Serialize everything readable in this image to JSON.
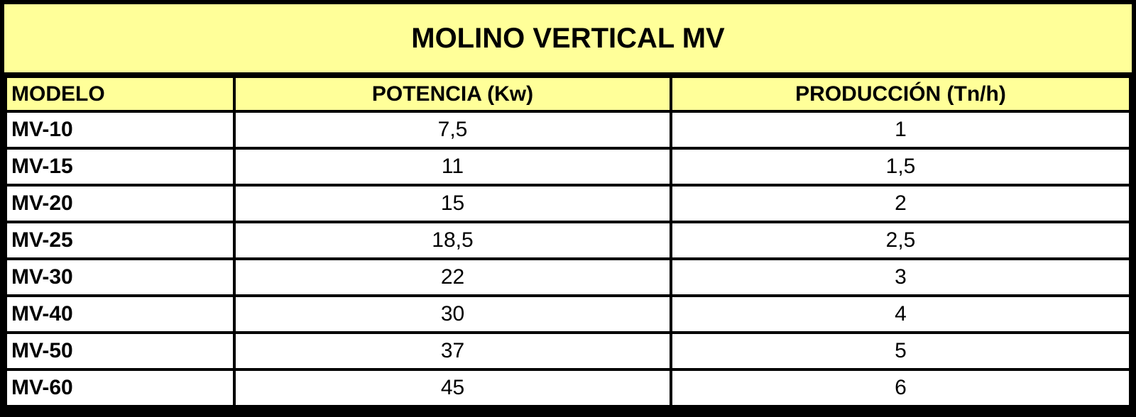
{
  "title": "MOLINO VERTICAL MV",
  "colors": {
    "header_bg": "#ffff99",
    "border": "#000000",
    "cell_bg": "#ffffff"
  },
  "table": {
    "headers": [
      "MODELO",
      "POTENCIA (Kw)",
      "PRODUCCIÓN (Tn/h)"
    ],
    "rows": [
      [
        "MV-10",
        "7,5",
        "1"
      ],
      [
        "MV-15",
        "11",
        "1,5"
      ],
      [
        "MV-20",
        "15",
        "2"
      ],
      [
        "MV-25",
        "18,5",
        "2,5"
      ],
      [
        "MV-30",
        "22",
        "3"
      ],
      [
        "MV-40",
        "30",
        "4"
      ],
      [
        "MV-50",
        "37",
        "5"
      ],
      [
        "MV-60",
        "45",
        "6"
      ]
    ]
  }
}
